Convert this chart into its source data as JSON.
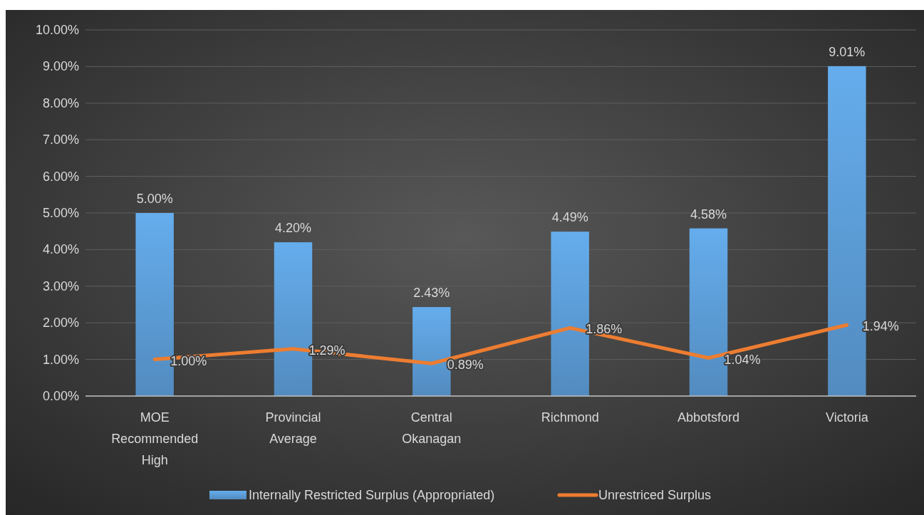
{
  "chart_data": {
    "type": "bar",
    "categories": [
      "MOE Recommended High",
      "Provincial Average",
      "Central Okanagan",
      "Richmond",
      "Abbotsford",
      "Victoria"
    ],
    "series": [
      {
        "name": "Internally Restricted Surplus (Appropriated)",
        "color": "#5b9bd5",
        "values": [
          5.0,
          4.2,
          2.43,
          4.49,
          4.58,
          9.01
        ],
        "value_labels": [
          "5.00%",
          "4.20%",
          "2.43%",
          "4.49%",
          "4.58%",
          "9.01%"
        ]
      },
      {
        "name": "Unrestriced Surplus",
        "type": "line",
        "color": "#ed7d31",
        "values": [
          1.0,
          1.29,
          0.89,
          1.86,
          1.04,
          1.94
        ],
        "value_labels": [
          "1.00%",
          "1.29%",
          "0.89%",
          "1.86%",
          "1.04%",
          "1.94%"
        ]
      }
    ],
    "ylim": [
      0,
      10
    ],
    "yticks": [
      {
        "value": 0,
        "label": "0.00%"
      },
      {
        "value": 1,
        "label": "1.00%"
      },
      {
        "value": 2,
        "label": "2.00%"
      },
      {
        "value": 3,
        "label": "3.00%"
      },
      {
        "value": 4,
        "label": "4.00%"
      },
      {
        "value": 5,
        "label": "5.00%"
      },
      {
        "value": 6,
        "label": "6.00%"
      },
      {
        "value": 7,
        "label": "7.00%"
      },
      {
        "value": 8,
        "label": "8.00%"
      },
      {
        "value": 9,
        "label": "9.00%"
      },
      {
        "value": 10,
        "label": "10.00%"
      }
    ],
    "grid": "y",
    "legend": "bottom",
    "marker": "none",
    "line_style": "solid"
  }
}
